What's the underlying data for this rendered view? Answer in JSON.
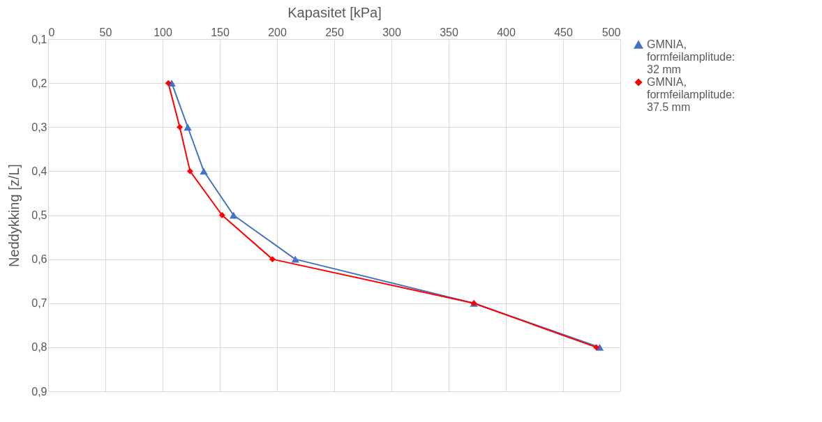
{
  "chart_data": {
    "type": "line",
    "xlabel": "Kapasitet [kPa]",
    "ylabel": "Neddykking [z/L]",
    "xlim": [
      0,
      500
    ],
    "xticks": [
      0,
      50,
      100,
      150,
      200,
      250,
      300,
      350,
      400,
      450,
      500
    ],
    "ylim": [
      0.9,
      0.1
    ],
    "yticks": [
      {
        "value": 0.1,
        "label": "0,1"
      },
      {
        "value": 0.2,
        "label": "0,2"
      },
      {
        "value": 0.3,
        "label": "0,3"
      },
      {
        "value": 0.4,
        "label": "0,4"
      },
      {
        "value": 0.5,
        "label": "0,5"
      },
      {
        "value": 0.6,
        "label": "0,6"
      },
      {
        "value": 0.7,
        "label": "0,7"
      },
      {
        "value": 0.8,
        "label": "0,8"
      },
      {
        "value": 0.9,
        "label": "0,9"
      }
    ],
    "grid": true,
    "legend": "right",
    "line_style": "solid",
    "series": [
      {
        "name": "GMNIA, formfeilamplitude: 32 mm",
        "color": "#4472c4",
        "marker": "triangle",
        "x": [
          108,
          122,
          136,
          162,
          216,
          372,
          482
        ],
        "values": [
          0.2,
          0.3,
          0.4,
          0.5,
          0.6,
          0.7,
          0.8
        ]
      },
      {
        "name": "GMNIA, formfeilamplitude: 37.5 mm",
        "color": "#ff0000",
        "marker": "diamond",
        "x": [
          105,
          115,
          124,
          152,
          196,
          372,
          479
        ],
        "values": [
          0.2,
          0.3,
          0.4,
          0.5,
          0.6,
          0.7,
          0.8
        ]
      }
    ]
  }
}
